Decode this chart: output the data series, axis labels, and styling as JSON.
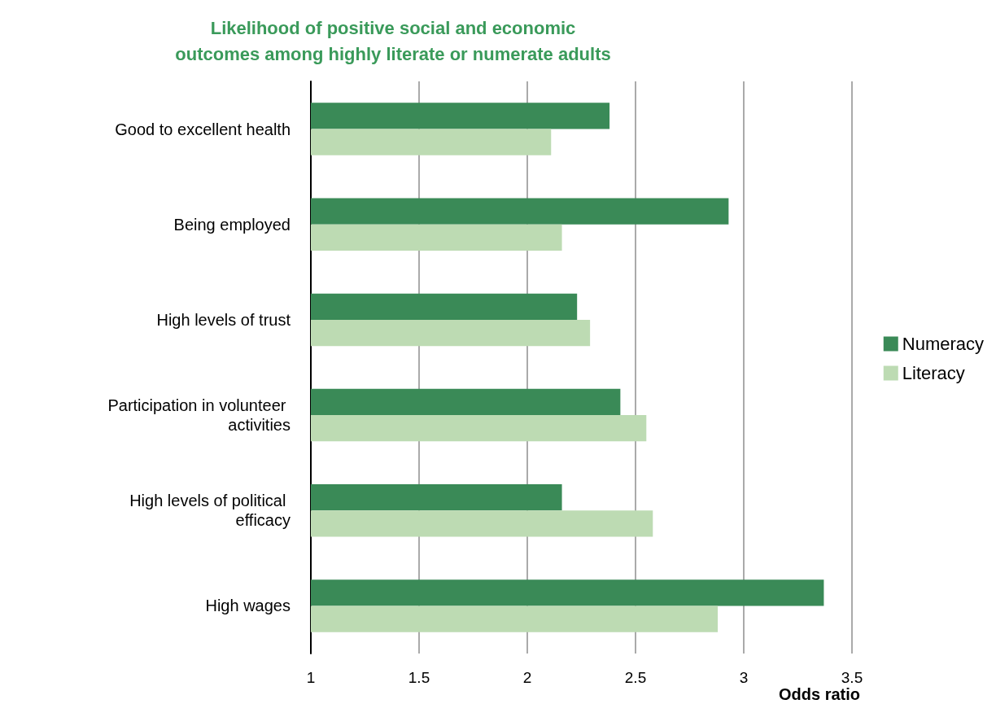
{
  "chart_data": {
    "type": "bar",
    "orientation": "horizontal",
    "title": "Likelihood of positive social and economic\noutcomes among highly literate or numerate adults",
    "xlabel": "Odds ratio",
    "categories": [
      "Good to excellent health",
      "Being employed",
      "High levels of trust",
      "Participation in volunteer activities",
      "High levels of political efficacy",
      "High wages"
    ],
    "series": [
      {
        "name": "Numeracy",
        "color": "#3a8a57",
        "values": [
          2.38,
          2.93,
          2.23,
          2.43,
          2.16,
          3.37
        ]
      },
      {
        "name": "Literacy",
        "color": "#bddbb3",
        "values": [
          2.11,
          2.16,
          2.29,
          2.55,
          2.58,
          2.88
        ]
      }
    ],
    "xlim": [
      1,
      3.5
    ],
    "xticks": [
      1,
      1.5,
      2,
      2.5,
      3,
      3.5
    ],
    "grid": "x",
    "legend": "right"
  }
}
